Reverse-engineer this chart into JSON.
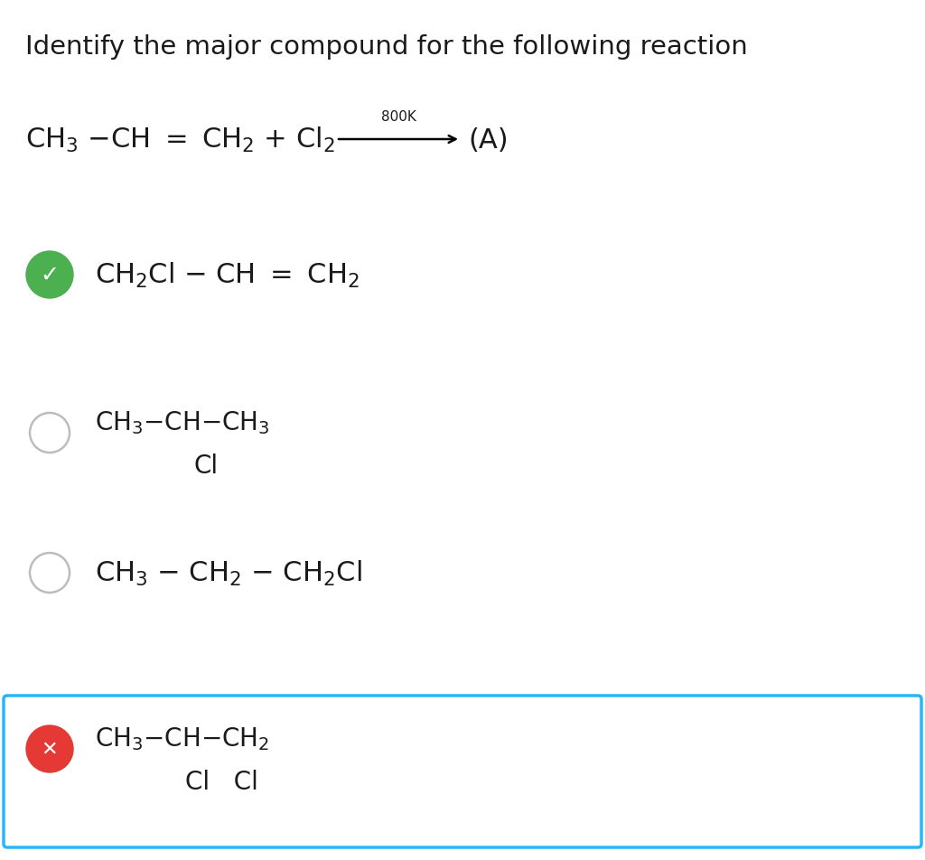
{
  "background_color": "#ffffff",
  "title": "Identify the major compound for the following reaction",
  "title_fontsize": 21,
  "text_color": "#1a1a1a",
  "correct_color": "#4caf50",
  "wrong_color": "#e53935",
  "radio_edge_color": "#bdbdbd",
  "box_color": "#29b6f6",
  "reaction_text": "CH$_3$ $-$CH $=$ CH$_2$ $+$ Cl$_2$",
  "reaction_condition": "800K",
  "reaction_product": "(A)",
  "opt1_main": "CH$_2$Cl $-$ CH $=$ CH$_2$",
  "opt2_main": "CH$_3$$-$CH$-$CH$_3$",
  "opt2_sub": "Cl",
  "opt3_main": "CH$_3$ $-$ CH$_2$ $-$ CH$_2$Cl",
  "opt4_main": "CH$_3$$-$CH$-$CH$_2$",
  "opt4_sub": "Cl   Cl",
  "reaction_fontsize": 22,
  "opt_fontsize": 22,
  "opt2_fontsize": 20,
  "opt4_fontsize": 20,
  "sub_fontsize": 20
}
